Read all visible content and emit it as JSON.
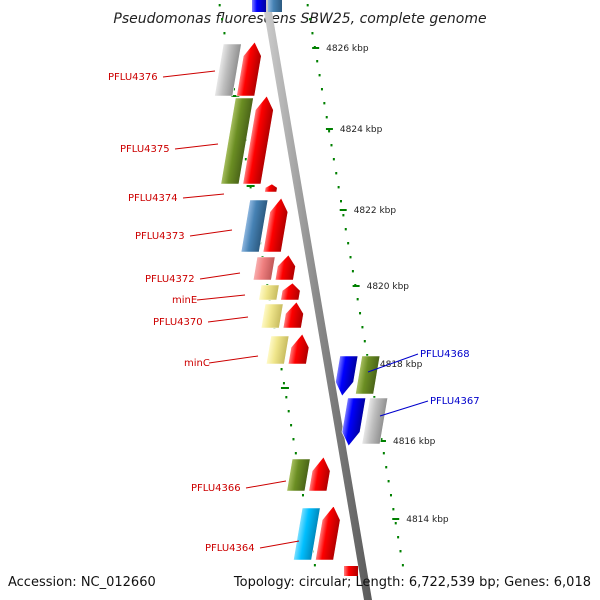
{
  "title": "Pseudomonas fluorescens SBW25, complete genome",
  "footer": {
    "accession": "Accession: NC_012660",
    "summary": "Topology: circular; Length: 6,722,539 bp; Genes: 6,018"
  },
  "colors": {
    "forward_strand_arrow": "#ff0000",
    "reverse_strand_arrow": "#0000ff",
    "forward_label": "#cc0000",
    "reverse_label": "#0000cc",
    "tick": "#008000",
    "backbone": "#808080",
    "grey_cog": "#b8b8b8",
    "olive_cog": "#6b8e23",
    "steel_blue_cog": "#4682b4",
    "light_red_cog": "#f08080",
    "khaki_cog": "#f0e68c",
    "cyan_cog": "#00bfff"
  },
  "axis_ticks": [
    "4826 kbp",
    "4824 kbp",
    "4822 kbp",
    "4820 kbp",
    "4818 kbp",
    "4816 kbp",
    "4814 kbp"
  ],
  "genes": [
    {
      "name": "PFLU4376",
      "strand": "forward",
      "cog_color": "grey_cog"
    },
    {
      "name": "PFLU4375",
      "strand": "forward",
      "cog_color": "olive_cog"
    },
    {
      "name": "PFLU4374",
      "strand": "forward",
      "cog_color": null
    },
    {
      "name": "PFLU4373",
      "strand": "forward",
      "cog_color": "steel_blue_cog"
    },
    {
      "name": "PFLU4372",
      "strand": "forward",
      "cog_color": "light_red_cog"
    },
    {
      "name": "minE",
      "strand": "forward",
      "cog_color": "khaki_cog"
    },
    {
      "name": "PFLU4370",
      "strand": "forward",
      "cog_color": "khaki_cog"
    },
    {
      "name": "minC",
      "strand": "forward",
      "cog_color": "khaki_cog"
    },
    {
      "name": "PFLU4368",
      "strand": "reverse",
      "cog_color": "olive_cog"
    },
    {
      "name": "PFLU4367",
      "strand": "reverse",
      "cog_color": "grey_cog"
    },
    {
      "name": "PFLU4366",
      "strand": "forward",
      "cog_color": "olive_cog"
    },
    {
      "name": "PFLU4364",
      "strand": "forward",
      "cog_color": "cyan_cog"
    }
  ]
}
